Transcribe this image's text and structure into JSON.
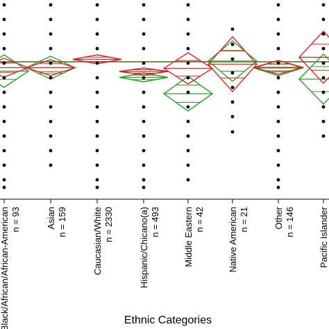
{
  "chart_data": {
    "type": "scatter",
    "xlabel": "Ethnic Categories",
    "ylabel": "",
    "grid": false,
    "grand_mean_line": true,
    "colors": {
      "points": "#000000",
      "red": "#d62728",
      "green": "#2ca02c",
      "grand_mean": "#7a8a55"
    },
    "categories": [
      {
        "name": "Black/African/African-American",
        "n_label": "n = 93",
        "red_diamond": [
          84,
          111
        ],
        "green_diamond": [
          79,
          126
        ],
        "points": [
          7,
          28,
          49,
          70,
          91,
          112,
          133,
          154,
          175,
          196,
          217,
          238,
          259,
          270
        ]
      },
      {
        "name": "Asian",
        "n_label": "n = 159",
        "red_diamond": [
          86,
          109
        ],
        "green_diamond": [
          81,
          114
        ],
        "points": [
          7,
          28,
          49,
          70,
          91,
          112,
          133,
          154,
          175,
          196,
          217,
          238
        ]
      },
      {
        "name": "Caucasian/White",
        "n_label": "n = 2330",
        "red_diamond": [
          79,
          92
        ],
        "green_diamond": null,
        "points": [
          7,
          28,
          49,
          70,
          91,
          112,
          133,
          154,
          175,
          196,
          217,
          238,
          259,
          270
        ]
      },
      {
        "name": "Hispanic/Chicano(a)",
        "n_label": "n = 493",
        "red_diamond": [
          98,
          108
        ],
        "green_diamond": [
          105,
          118
        ],
        "points": [
          7,
          28,
          49,
          70,
          91,
          112,
          133,
          154,
          175,
          196,
          217,
          238,
          259,
          270
        ]
      },
      {
        "name": "Middle Eastern",
        "n_label": "n = 42",
        "red_diamond": [
          76,
          121
        ],
        "green_diamond": [
          110,
          160
        ],
        "points": [
          7,
          28,
          49,
          70,
          91,
          112,
          133,
          154,
          175,
          196,
          217,
          238,
          259
        ]
      },
      {
        "name": "Native American",
        "n_label": "n = 21",
        "red_diamond": [
          53,
          132
        ],
        "green_diamond": [
          59,
          117
        ],
        "points": [
          42,
          64,
          85,
          105,
          126,
          147,
          168,
          190
        ]
      },
      {
        "name": "Other",
        "n_label": "n = 146",
        "red_diamond": [
          87,
          107
        ],
        "green_diamond": [
          87,
          109
        ],
        "points": [
          7,
          28,
          49,
          70,
          91,
          112,
          133,
          154,
          175,
          196,
          217,
          238,
          259,
          270
        ]
      },
      {
        "name": "Pacific Islander",
        "n_label": "",
        "red_diamond": [
          45,
          120
        ],
        "green_diamond": [
          78,
          150
        ],
        "points": [
          7,
          28,
          49,
          70,
          91,
          112,
          133,
          154,
          175,
          196
        ]
      }
    ]
  }
}
